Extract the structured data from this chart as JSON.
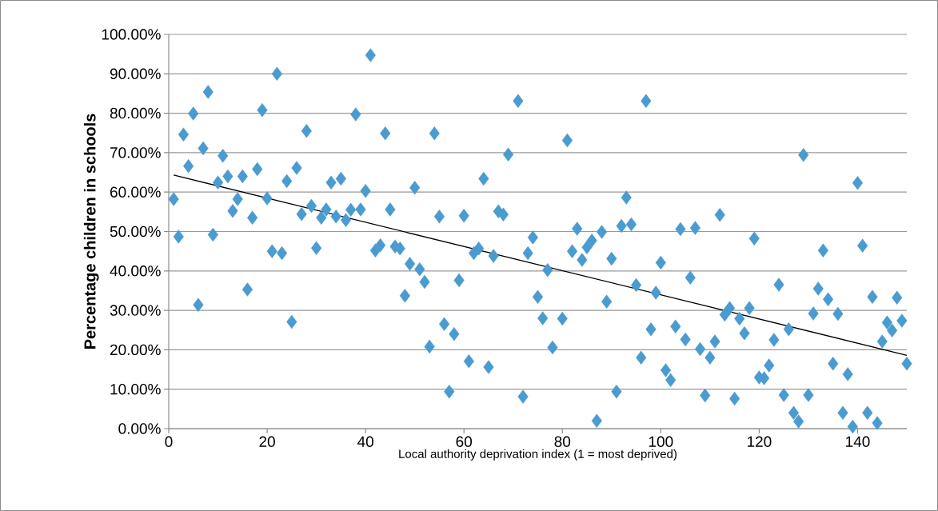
{
  "chart_data": {
    "type": "scatter",
    "xlabel": "Local authority deprivation index (1 = most deprived)",
    "ylabel": "Percentage children in schools",
    "xlim": [
      0,
      150
    ],
    "ylim": [
      0,
      100
    ],
    "xticks": [
      0,
      20,
      40,
      60,
      80,
      100,
      120,
      140
    ],
    "yticks": [
      {
        "value": 0,
        "label": "0.00%"
      },
      {
        "value": 10,
        "label": "10.00%"
      },
      {
        "value": 20,
        "label": "20.00%"
      },
      {
        "value": 30,
        "label": "30.00%"
      },
      {
        "value": 40,
        "label": "40.00%"
      },
      {
        "value": 50,
        "label": "50.00%"
      },
      {
        "value": 60,
        "label": "60.00%"
      },
      {
        "value": 70,
        "label": "70.00%"
      },
      {
        "value": 80,
        "label": "80.00%"
      },
      {
        "value": 90,
        "label": "90.00%"
      },
      {
        "value": 100,
        "label": "100.00%"
      }
    ],
    "grid": "y",
    "series": [
      {
        "marker": "diamond",
        "color": "#4a9bd0",
        "x": [
          1,
          2,
          3,
          4,
          5,
          6,
          7,
          8,
          9,
          10,
          11,
          12,
          13,
          14,
          15,
          16,
          17,
          18,
          19,
          20,
          21,
          22,
          23,
          24,
          25,
          26,
          27,
          28,
          29,
          30,
          31,
          32,
          33,
          34,
          35,
          36,
          37,
          38,
          39,
          40,
          41,
          42,
          43,
          44,
          45,
          46,
          47,
          48,
          49,
          50,
          51,
          52,
          53,
          54,
          55,
          56,
          57,
          58,
          59,
          60,
          61,
          62,
          63,
          64,
          65,
          66,
          67,
          68,
          69,
          71,
          72,
          73,
          74,
          75,
          76,
          77,
          78,
          80,
          81,
          82,
          83,
          84,
          85,
          86,
          87,
          88,
          89,
          90,
          91,
          92,
          93,
          94,
          95,
          96,
          97,
          98,
          99,
          100,
          101,
          102,
          103,
          104,
          105,
          106,
          107,
          108,
          109,
          110,
          111,
          112,
          113,
          114,
          115,
          116,
          117,
          118,
          119,
          120,
          121,
          122,
          123,
          124,
          125,
          126,
          127,
          128,
          129,
          130,
          131,
          132,
          133,
          134,
          135,
          136,
          137,
          138,
          139,
          140,
          141,
          142,
          143,
          144,
          145,
          146,
          147,
          148,
          149,
          150
        ],
        "values": [
          58.2,
          48.7,
          74.6,
          66.6,
          79.9,
          31.4,
          71.1,
          85.4,
          49.2,
          62.4,
          69.2,
          64.0,
          55.2,
          58.2,
          64.0,
          35.3,
          53.5,
          65.8,
          80.8,
          58.4,
          45.0,
          90.0,
          44.5,
          62.8,
          27.1,
          66.1,
          54.4,
          75.5,
          56.5,
          45.8,
          53.5,
          55.6,
          62.4,
          53.8,
          63.4,
          52.9,
          55.5,
          79.7,
          55.6,
          60.3,
          94.7,
          45.2,
          46.5,
          74.9,
          55.6,
          46.2,
          45.7,
          33.7,
          41.8,
          61.1,
          40.4,
          37.2,
          20.8,
          74.9,
          53.8,
          26.5,
          9.4,
          24.0,
          37.6,
          54.0,
          17.1,
          44.5,
          45.7,
          63.4,
          15.6,
          43.8,
          55.1,
          54.3,
          69.5,
          83.1,
          8.1,
          44.5,
          48.5,
          33.4,
          28.0,
          40.2,
          20.6,
          27.9,
          73.1,
          45.0,
          50.7,
          42.8,
          46.0,
          47.7,
          2.0,
          49.9,
          32.2,
          43.1,
          9.4,
          51.4,
          58.6,
          51.8,
          36.4,
          18.0,
          83.1,
          25.2,
          34.5,
          42.1,
          14.8,
          12.3,
          25.9,
          50.6,
          22.6,
          38.3,
          50.9,
          20.2,
          8.4,
          18.0,
          22.1,
          54.2,
          28.9,
          30.6,
          7.6,
          27.9,
          24.2,
          30.6,
          48.2,
          13.0,
          12.8,
          16.0,
          22.5,
          36.5,
          8.5,
          25.2,
          4.0,
          1.8,
          69.4,
          8.5,
          29.2,
          35.5,
          45.2,
          32.8,
          16.5,
          29.1,
          4.0,
          13.8,
          0.5,
          62.3,
          46.4,
          4.0,
          33.4,
          1.4,
          22.1,
          26.9,
          24.9,
          33.2,
          27.4,
          16.5
        ]
      },
      {
        "type": "line",
        "marker": "none",
        "color": "#000000",
        "x": [
          1,
          150
        ],
        "values": [
          64.3,
          18.6
        ]
      }
    ]
  }
}
